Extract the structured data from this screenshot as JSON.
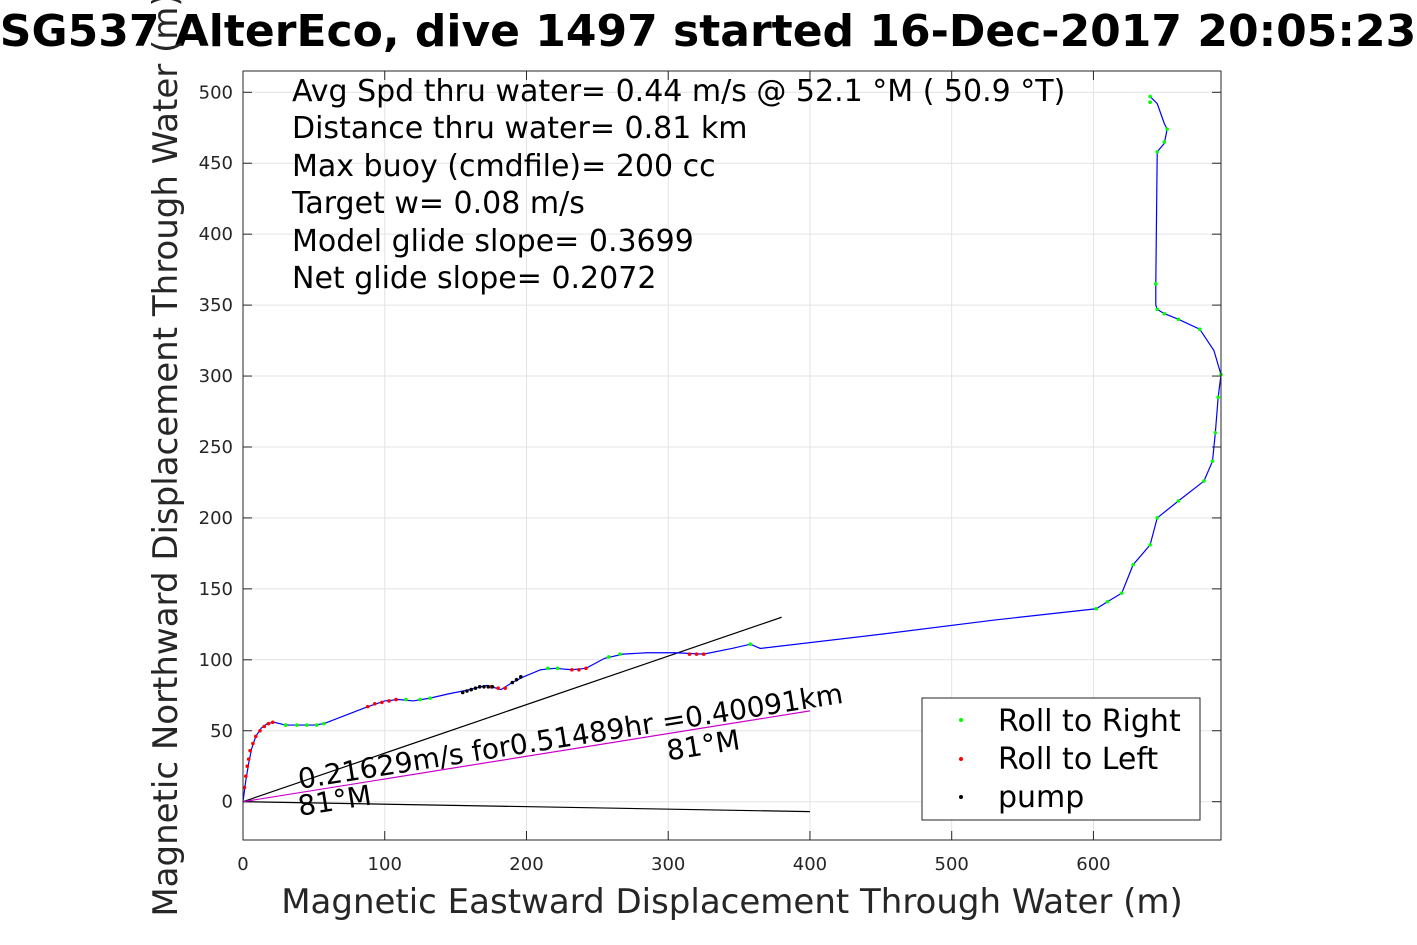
{
  "chart_data": {
    "type": "line",
    "title": "SG537 AlterEco, dive 1497 started 16-Dec-2017 20:05:23",
    "xlabel": "Magnetic Eastward Displacement Through Water (m)",
    "ylabel": "Magnetic Northward Displacement Through Water (m)",
    "xlim": [
      0,
      690
    ],
    "ylim": [
      -27,
      515
    ],
    "xticks": [
      0,
      100,
      200,
      300,
      400,
      500,
      600
    ],
    "yticks": [
      0,
      50,
      100,
      150,
      200,
      250,
      300,
      350,
      400,
      450,
      500
    ],
    "grid": true,
    "stats": [
      "Avg Spd thru water=  0.44 m/s @  52.1 °M ( 50.9 °T)",
      "Distance thru water=  0.81 km",
      "Max buoy (cmdfile)= 200 cc",
      "Target w= 0.08 m/s",
      "Model glide slope= 0.3699",
      "Net glide slope= 0.2072"
    ],
    "legend": {
      "position": "bottom-right",
      "entries": [
        {
          "label": "Roll to Right",
          "color": "#00ff00"
        },
        {
          "label": "Roll to Left",
          "color": "#ff0000"
        },
        {
          "label": "pump",
          "color": "#000000"
        }
      ]
    },
    "track_color": "#0000ff",
    "track": {
      "x": [
        0,
        2,
        4,
        6,
        9,
        13,
        17,
        22,
        30,
        40,
        50,
        57,
        70,
        88,
        100,
        110,
        120,
        132,
        145,
        160,
        172,
        182,
        190,
        198,
        210,
        220,
        232,
        242,
        255,
        268,
        285,
        305,
        325,
        345,
        358,
        365,
        450,
        530,
        602,
        610,
        620,
        628,
        640,
        645,
        660,
        678,
        684,
        686,
        688,
        690,
        685,
        675,
        660,
        650,
        645,
        644,
        644,
        645,
        650,
        652,
        650,
        645,
        640
      ],
      "y": [
        0,
        15,
        27,
        37,
        46,
        52,
        55,
        56,
        54,
        54,
        54,
        55,
        60,
        67,
        71,
        72,
        71,
        73,
        76,
        79,
        82,
        79,
        84,
        88,
        93,
        94,
        93,
        94,
        101,
        104,
        105,
        105,
        104,
        108,
        111,
        108,
        118,
        128,
        136,
        141,
        147,
        167,
        181,
        200,
        212,
        226,
        240,
        260,
        285,
        301,
        318,
        333,
        340,
        344,
        347,
        350,
        365,
        458,
        464,
        474,
        478,
        492,
        497
      ]
    },
    "roll_right": {
      "x": [
        30,
        38,
        45,
        52,
        57,
        115,
        125,
        132,
        215,
        222,
        258,
        266,
        358,
        602,
        610,
        620,
        628,
        640,
        645,
        660,
        678,
        684,
        686,
        688,
        690,
        675,
        660,
        650,
        645,
        644,
        645,
        652,
        650,
        640,
        640
      ],
      "y": [
        54,
        54,
        54,
        54,
        55,
        72,
        72,
        73,
        94,
        94,
        102,
        104,
        111,
        136,
        141,
        147,
        167,
        181,
        200,
        212,
        226,
        240,
        260,
        285,
        301,
        333,
        340,
        344,
        347,
        365,
        458,
        474,
        465,
        497,
        493
      ]
    },
    "roll_left": {
      "x": [
        1,
        2,
        3,
        4,
        5,
        7,
        9,
        12,
        15,
        18,
        21,
        88,
        93,
        98,
        103,
        108,
        175,
        180,
        185,
        232,
        237,
        242,
        315,
        320,
        325
      ],
      "y": [
        10,
        18,
        25,
        30,
        36,
        41,
        46,
        50,
        53,
        55,
        56,
        67,
        69,
        70,
        71,
        72,
        81,
        80,
        80,
        93,
        93,
        94,
        104,
        104,
        104
      ]
    },
    "pump": {
      "x": [
        155,
        158,
        161,
        164,
        167,
        170,
        173,
        176,
        190,
        193,
        196
      ],
      "y": [
        77,
        78,
        79,
        80,
        81,
        81,
        81,
        81,
        84,
        86,
        88
      ]
    },
    "current_line": {
      "x": [
        0,
        400
      ],
      "y": [
        0,
        64
      ]
    },
    "model_slope_line": {
      "x": [
        0,
        380
      ],
      "y": [
        0,
        130
      ]
    },
    "reference_line": {
      "x": [
        0,
        400
      ],
      "y": [
        0,
        -7
      ]
    },
    "annotations": [
      {
        "text": "0.21629m/s for0.51489hr =0.40091km",
        "x": 40,
        "y": 9,
        "angle_deg": -9
      },
      {
        "text": "81°M",
        "x": 300,
        "y": 29,
        "angle_deg": -9
      },
      {
        "text": "81°M",
        "x": 40,
        "y": -10,
        "angle_deg": -9
      }
    ]
  }
}
